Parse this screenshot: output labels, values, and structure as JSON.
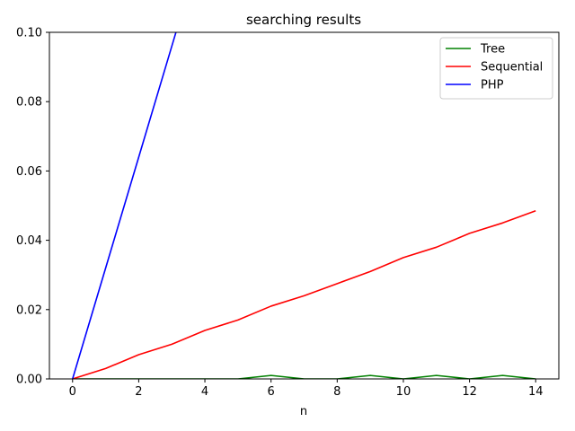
{
  "chart_data": {
    "type": "line",
    "title": "searching results",
    "xlabel": "n",
    "ylabel": "",
    "xlim": [
      -0.7,
      14.7
    ],
    "ylim": [
      0,
      0.1
    ],
    "xticks": [
      0,
      2,
      4,
      6,
      8,
      10,
      12,
      14
    ],
    "yticks": [
      0.0,
      0.02,
      0.04,
      0.06,
      0.08,
      0.1
    ],
    "xtick_labels": [
      "0",
      "2",
      "4",
      "6",
      "8",
      "10",
      "12",
      "14"
    ],
    "ytick_labels": [
      "0.00",
      "0.02",
      "0.04",
      "0.06",
      "0.08",
      "0.10"
    ],
    "legend_position": "top-right",
    "grid": false,
    "x": [
      0,
      1,
      2,
      3,
      4,
      5,
      6,
      7,
      8,
      9,
      10,
      11,
      12,
      13,
      14
    ],
    "series": [
      {
        "name": "Tree",
        "color": "#008000",
        "values": [
          0,
          0,
          0,
          0,
          0,
          0,
          0.001,
          0,
          0,
          0.001,
          0,
          0.001,
          0,
          0.001,
          0
        ]
      },
      {
        "name": "Sequential",
        "color": "#ff0000",
        "values": [
          0,
          0.003,
          0.007,
          0.01,
          0.014,
          0.017,
          0.021,
          0.024,
          0.0275,
          0.031,
          0.035,
          0.038,
          0.042,
          0.045,
          0.0485
        ]
      },
      {
        "name": "PHP",
        "color": "#0000ff",
        "x": [
          0,
          1,
          2,
          3,
          4
        ],
        "values": [
          0,
          0.032,
          0.064,
          0.096,
          0.128
        ]
      }
    ]
  }
}
